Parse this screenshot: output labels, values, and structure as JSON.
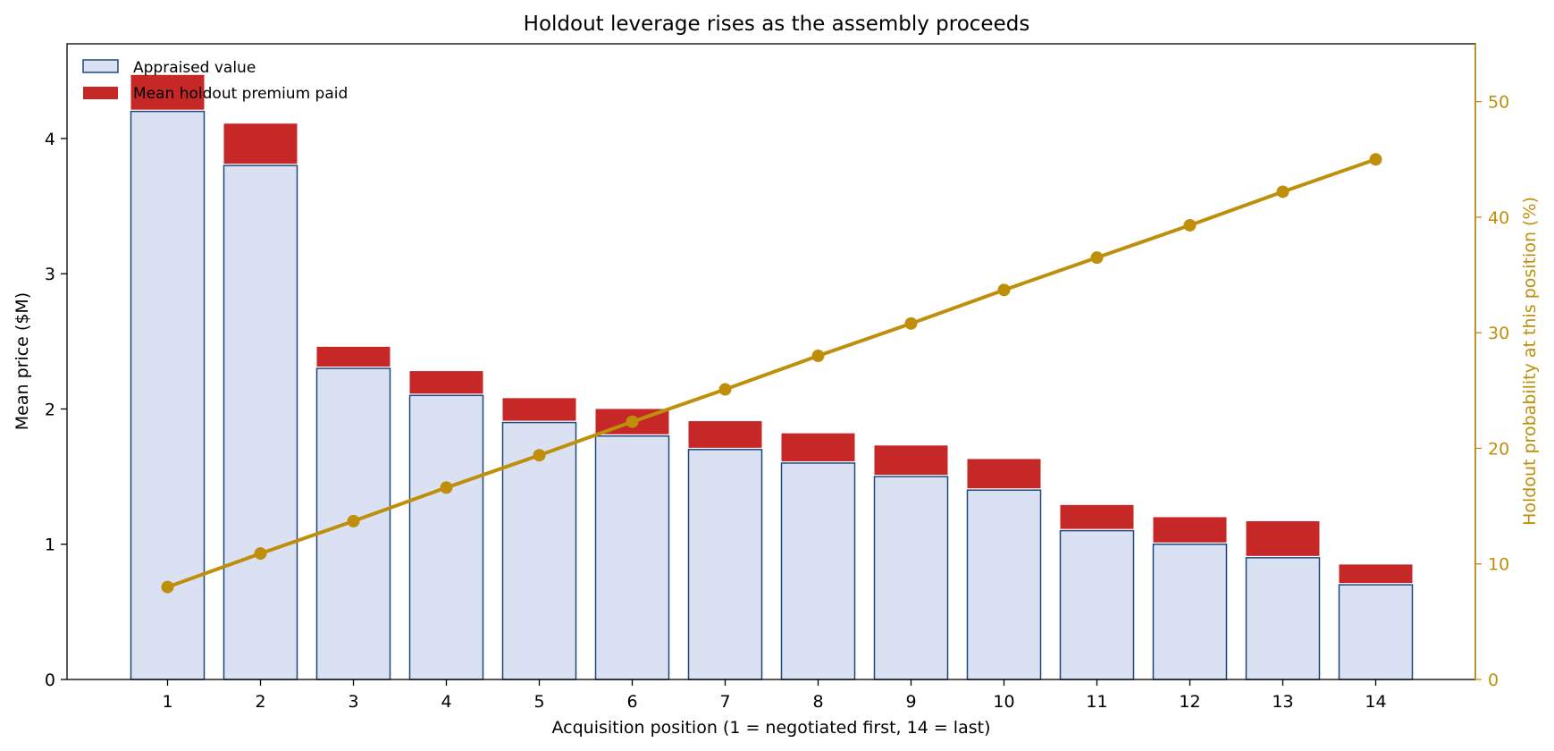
{
  "chart_data": {
    "type": "bar",
    "title": "Holdout leverage rises as the assembly proceeds",
    "xlabel": "Acquisition position  (1 = negotiated first, 14 = last)",
    "ylabel": "Mean price ($M)",
    "y2label": "Holdout probability at this position  (%)",
    "categories": [
      "1",
      "2",
      "3",
      "4",
      "5",
      "6",
      "7",
      "8",
      "9",
      "10",
      "11",
      "12",
      "13",
      "14"
    ],
    "ylim": [
      0,
      4.7
    ],
    "y2lim": [
      0,
      55
    ],
    "yticks": [
      "0",
      "1",
      "2",
      "3",
      "4"
    ],
    "y2ticks": [
      "0",
      "10",
      "20",
      "30",
      "40",
      "50"
    ],
    "grid": false,
    "legend_position": "top-left",
    "series": [
      {
        "name": "Appraised value",
        "kind": "bar-stack-base",
        "color": "#dae1f2",
        "edge_color": "#1f497d",
        "values": [
          4.2,
          3.8,
          2.3,
          2.1,
          1.9,
          1.8,
          1.7,
          1.6,
          1.5,
          1.4,
          1.1,
          1.0,
          0.9,
          0.7
        ]
      },
      {
        "name": "Mean holdout premium paid",
        "kind": "bar-stack-top",
        "color": "#c62828",
        "values": [
          0.27,
          0.31,
          0.16,
          0.18,
          0.18,
          0.2,
          0.21,
          0.22,
          0.23,
          0.23,
          0.19,
          0.2,
          0.27,
          0.15
        ]
      },
      {
        "name": "",
        "kind": "line-secondary-axis",
        "color": "#bf8f0c",
        "values": [
          8.0,
          10.9,
          13.7,
          16.6,
          19.4,
          22.3,
          25.1,
          28.0,
          30.8,
          33.7,
          36.5,
          39.3,
          42.2,
          45.0
        ]
      }
    ]
  }
}
